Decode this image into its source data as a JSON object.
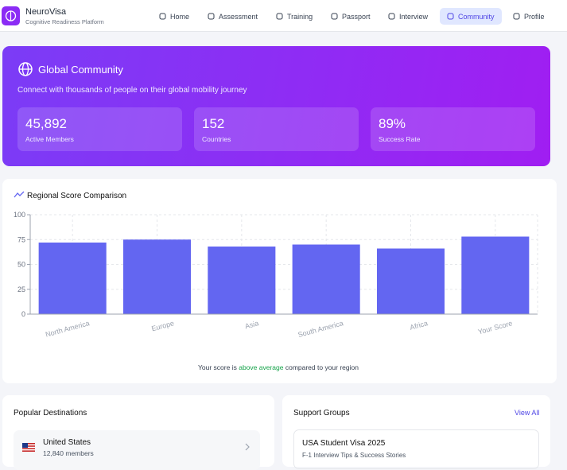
{
  "header": {
    "brand": "NeuroVisa",
    "tagline": "Cognitive Readiness Platform",
    "nav": [
      "Home",
      "Assessment",
      "Training",
      "Passport",
      "Interview",
      "Community",
      "Profile"
    ],
    "active": "Community"
  },
  "hero": {
    "title": "Global Community",
    "subtitle": "Connect with thousands of people on their global mobility journey",
    "stats": [
      {
        "value": "45,892",
        "label": "Active Members"
      },
      {
        "value": "152",
        "label": "Countries"
      },
      {
        "value": "89%",
        "label": "Success Rate"
      }
    ]
  },
  "chart_data": {
    "type": "bar",
    "title": "Regional Score Comparison",
    "categories": [
      "North America",
      "Europe",
      "Asia",
      "South America",
      "Africa",
      "Your Score"
    ],
    "values": [
      72,
      75,
      68,
      70,
      66,
      78
    ],
    "color": "#6366f1",
    "ylim": [
      0,
      100
    ],
    "yticks": [
      0,
      25,
      50,
      75,
      100
    ],
    "grid": true,
    "caption": [
      "Your score is",
      "above average",
      "compared to your region"
    ]
  },
  "destinations": {
    "title": "Popular Destinations",
    "items": [
      {
        "name": "United States",
        "members": "12,840 members"
      }
    ]
  },
  "groups": {
    "title": "Support Groups",
    "action": "View All",
    "items": [
      {
        "name": "USA Student Visa 2025",
        "desc": "F-1 Interview Tips & Success Stories"
      }
    ]
  }
}
